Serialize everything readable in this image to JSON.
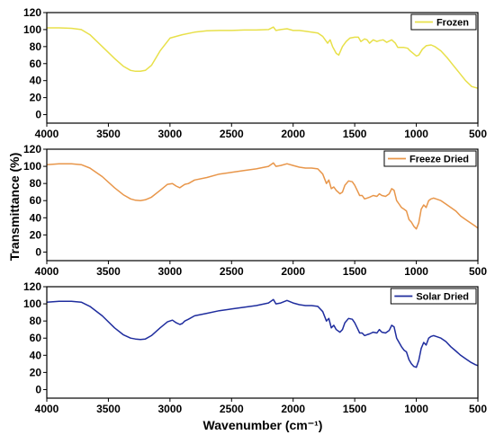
{
  "chart_data": {
    "type": "line",
    "xlabel": "Wavenumber (cm⁻¹)",
    "ylabel": "Transmittance (%)",
    "xlim": [
      4000,
      500
    ],
    "ylim": [
      -10,
      120
    ],
    "x_ticks": [
      4000,
      3500,
      3000,
      2500,
      2000,
      1500,
      1000,
      500
    ],
    "y_ticks": [
      0,
      20,
      40,
      60,
      80,
      100,
      120
    ],
    "grid": false,
    "legend_position": "top-right",
    "panels": [
      {
        "name": "Frozen",
        "color": "#e8e04a",
        "x": [
          4000,
          3900,
          3800,
          3720,
          3650,
          3550,
          3450,
          3380,
          3320,
          3280,
          3240,
          3200,
          3150,
          3080,
          3000,
          2900,
          2800,
          2700,
          2600,
          2500,
          2400,
          2300,
          2200,
          2160,
          2140,
          2100,
          2050,
          2000,
          1950,
          1900,
          1850,
          1800,
          1760,
          1720,
          1700,
          1680,
          1650,
          1630,
          1600,
          1570,
          1540,
          1500,
          1470,
          1450,
          1420,
          1400,
          1380,
          1350,
          1320,
          1300,
          1270,
          1240,
          1200,
          1170,
          1150,
          1100,
          1070,
          1050,
          1000,
          980,
          950,
          920,
          880,
          850,
          800,
          750,
          700,
          650,
          600,
          550,
          500
        ],
        "y": [
          102,
          102,
          101.5,
          100,
          94,
          80,
          66,
          57,
          52,
          51,
          51,
          52,
          58,
          75,
          90,
          94,
          97,
          98.5,
          99,
          99,
          99.5,
          99.5,
          100,
          103,
          99,
          100,
          101,
          99,
          99,
          98,
          97,
          96,
          92,
          84,
          88,
          80,
          72,
          70,
          80,
          86,
          90,
          91,
          91,
          86,
          89,
          88,
          84,
          88,
          86,
          87,
          88,
          85,
          88,
          84,
          79,
          79,
          78,
          75,
          69,
          70,
          77,
          81,
          82,
          80,
          75,
          67,
          58,
          49,
          40,
          33,
          31
        ]
      },
      {
        "name": "Freeze Dried",
        "color": "#e8964a",
        "x": [
          4000,
          3900,
          3800,
          3720,
          3650,
          3550,
          3450,
          3380,
          3320,
          3280,
          3240,
          3200,
          3150,
          3080,
          3020,
          2980,
          2950,
          2920,
          2900,
          2880,
          2850,
          2800,
          2700,
          2600,
          2500,
          2400,
          2300,
          2200,
          2160,
          2140,
          2100,
          2050,
          2000,
          1950,
          1900,
          1850,
          1800,
          1760,
          1730,
          1710,
          1690,
          1670,
          1650,
          1620,
          1600,
          1580,
          1550,
          1520,
          1500,
          1480,
          1460,
          1440,
          1420,
          1400,
          1380,
          1350,
          1320,
          1300,
          1280,
          1250,
          1220,
          1200,
          1180,
          1160,
          1140,
          1120,
          1100,
          1080,
          1060,
          1040,
          1020,
          1000,
          980,
          960,
          940,
          920,
          900,
          880,
          860,
          840,
          800,
          760,
          720,
          680,
          640,
          600,
          560,
          520,
          500
        ],
        "y": [
          102,
          103,
          103,
          102,
          98,
          88,
          75,
          67,
          62,
          60.5,
          60,
          61,
          64,
          72,
          79,
          80,
          77,
          75,
          77,
          79,
          80,
          84,
          87,
          91,
          93,
          95,
          97,
          100,
          104,
          100,
          101,
          103,
          101,
          99,
          98,
          98,
          97,
          91,
          80,
          84,
          74,
          76,
          72,
          68,
          70,
          78,
          83,
          82,
          78,
          72,
          66,
          66,
          62,
          63,
          64,
          66,
          65,
          68,
          66,
          65,
          68,
          74,
          72,
          60,
          56,
          52,
          50,
          48,
          38,
          35,
          30,
          27,
          34,
          50,
          55,
          52,
          60,
          62,
          63,
          62,
          60,
          56,
          52,
          48,
          42,
          38,
          34,
          30,
          28
        ]
      },
      {
        "name": "Solar Dried",
        "color": "#1f2d9e",
        "x": [
          4000,
          3900,
          3800,
          3720,
          3650,
          3550,
          3450,
          3380,
          3320,
          3280,
          3240,
          3200,
          3150,
          3080,
          3020,
          2980,
          2950,
          2920,
          2900,
          2880,
          2850,
          2800,
          2700,
          2600,
          2500,
          2400,
          2300,
          2200,
          2160,
          2140,
          2100,
          2050,
          2000,
          1950,
          1900,
          1850,
          1800,
          1760,
          1730,
          1710,
          1690,
          1670,
          1650,
          1620,
          1600,
          1580,
          1550,
          1520,
          1500,
          1480,
          1460,
          1440,
          1420,
          1400,
          1380,
          1350,
          1320,
          1300,
          1280,
          1250,
          1220,
          1200,
          1180,
          1160,
          1140,
          1120,
          1100,
          1080,
          1060,
          1040,
          1020,
          1000,
          980,
          960,
          940,
          920,
          900,
          880,
          860,
          840,
          800,
          760,
          720,
          680,
          640,
          600,
          560,
          520,
          500
        ],
        "y": [
          102,
          103,
          103,
          102,
          97,
          86,
          72,
          64,
          60,
          59,
          58.5,
          59,
          63,
          72,
          79,
          81,
          78,
          76,
          77,
          80,
          82,
          86,
          89,
          92,
          94,
          96,
          98,
          101,
          105,
          100,
          101,
          104,
          101,
          99,
          98,
          98,
          97,
          91,
          80,
          83,
          72,
          75,
          70,
          67,
          70,
          78,
          83,
          82,
          78,
          72,
          66,
          66,
          63,
          64,
          65,
          67,
          66,
          70,
          67,
          66,
          69,
          75,
          73,
          60,
          55,
          50,
          46,
          44,
          35,
          30,
          27,
          26,
          34,
          48,
          55,
          52,
          60,
          62,
          63,
          62,
          60,
          56,
          50,
          45,
          40,
          36,
          32,
          29,
          28
        ]
      }
    ]
  }
}
